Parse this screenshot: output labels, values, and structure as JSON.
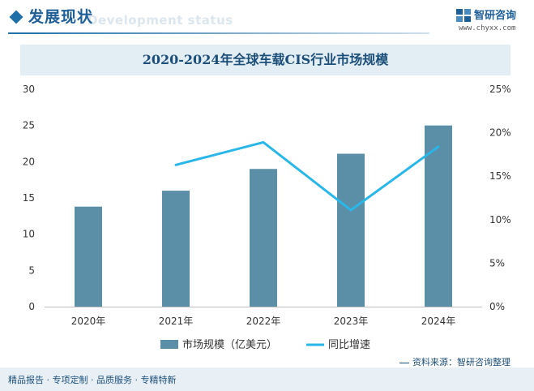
{
  "header": {
    "title": "发展现状",
    "subtitle": "Development status"
  },
  "brand": {
    "name": "智研咨询",
    "url": "www.chyxx.com"
  },
  "chart_data": {
    "type": "bar",
    "title": "2020-2024年全球车载CIS行业市场规模",
    "categories": [
      "2020年",
      "2021年",
      "2022年",
      "2023年",
      "2024年"
    ],
    "series": [
      {
        "name": "市场规模（亿美元）",
        "type": "bar",
        "axis": "left",
        "color": "#5b8fa8",
        "values": [
          13.8,
          16.0,
          19.0,
          21.1,
          25.0
        ]
      },
      {
        "name": "同比增速",
        "type": "line",
        "axis": "right",
        "color": "#29b6e9",
        "values": [
          null,
          16.3,
          18.9,
          11.1,
          18.4
        ]
      }
    ],
    "y_left": {
      "ylim": [
        0,
        30
      ],
      "ticks": [
        "0",
        "5",
        "10",
        "15",
        "20",
        "25",
        "30"
      ]
    },
    "y_right": {
      "ylim": [
        0,
        25
      ],
      "ticks": [
        "0%",
        "5%",
        "10%",
        "15%",
        "20%",
        "25%"
      ]
    },
    "grid": false,
    "legend": "bottom-center"
  },
  "footer": {
    "left": "精品报告 · 专项定制 · 品质服务 · 专精特新",
    "source": "资料来源：智研咨询整理"
  }
}
